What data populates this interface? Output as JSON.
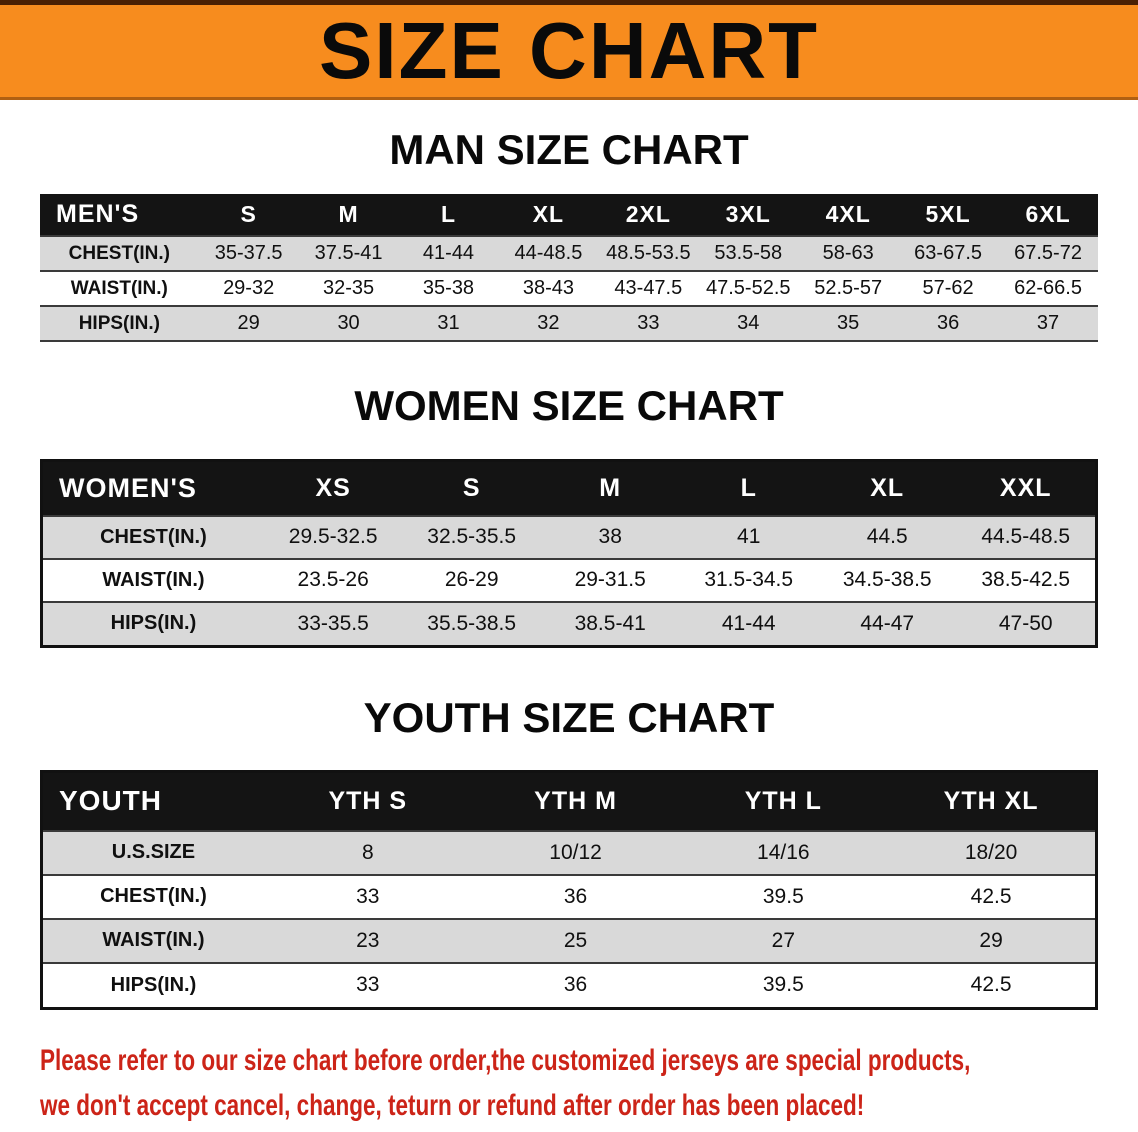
{
  "banner": {
    "title": "SIZE CHART"
  },
  "colors": {
    "banner_bg": "#f78c1e",
    "table_header_bg": "#141414",
    "row_stripe": "#d9d9d9",
    "notice_text": "#cc2418"
  },
  "sections": [
    {
      "heading": "MAN SIZE CHART",
      "table": {
        "header": [
          "MEN'S",
          "S",
          "M",
          "L",
          "XL",
          "2XL",
          "3XL",
          "4XL",
          "5XL",
          "6XL"
        ],
        "rows": [
          [
            "CHEST(IN.)",
            "35-37.5",
            "37.5-41",
            "41-44",
            "44-48.5",
            "48.5-53.5",
            "53.5-58",
            "58-63",
            "63-67.5",
            "67.5-72"
          ],
          [
            "WAIST(IN.)",
            "29-32",
            "32-35",
            "35-38",
            "38-43",
            "43-47.5",
            "47.5-52.5",
            "52.5-57",
            "57-62",
            "62-66.5"
          ],
          [
            "HIPS(IN.)",
            "29",
            "30",
            "31",
            "32",
            "33",
            "34",
            "35",
            "36",
            "37"
          ]
        ]
      }
    },
    {
      "heading": "WOMEN SIZE CHART",
      "table": {
        "header": [
          "WOMEN'S",
          "XS",
          "S",
          "M",
          "L",
          "XL",
          "XXL"
        ],
        "rows": [
          [
            "CHEST(IN.)",
            "29.5-32.5",
            "32.5-35.5",
            "38",
            "41",
            "44.5",
            "44.5-48.5"
          ],
          [
            "WAIST(IN.)",
            "23.5-26",
            "26-29",
            "29-31.5",
            "31.5-34.5",
            "34.5-38.5",
            "38.5-42.5"
          ],
          [
            "HIPS(IN.)",
            "33-35.5",
            "35.5-38.5",
            "38.5-41",
            "41-44",
            "44-47",
            "47-50"
          ]
        ]
      }
    },
    {
      "heading": "YOUTH SIZE CHART",
      "table": {
        "header": [
          "YOUTH",
          "YTH S",
          "YTH M",
          "YTH L",
          "YTH XL"
        ],
        "rows": [
          [
            "U.S.SIZE",
            "8",
            "10/12",
            "14/16",
            "18/20"
          ],
          [
            "CHEST(IN.)",
            "33",
            "36",
            "39.5",
            "42.5"
          ],
          [
            "WAIST(IN.)",
            "23",
            "25",
            "27",
            "29"
          ],
          [
            "HIPS(IN.)",
            "33",
            "36",
            "39.5",
            "42.5"
          ]
        ]
      }
    }
  ],
  "footer": {
    "line1": "Please refer to our size chart before order,the customized jerseys are special products,",
    "line2": "we don't accept cancel, change, teturn or refund after order has been placed!"
  }
}
